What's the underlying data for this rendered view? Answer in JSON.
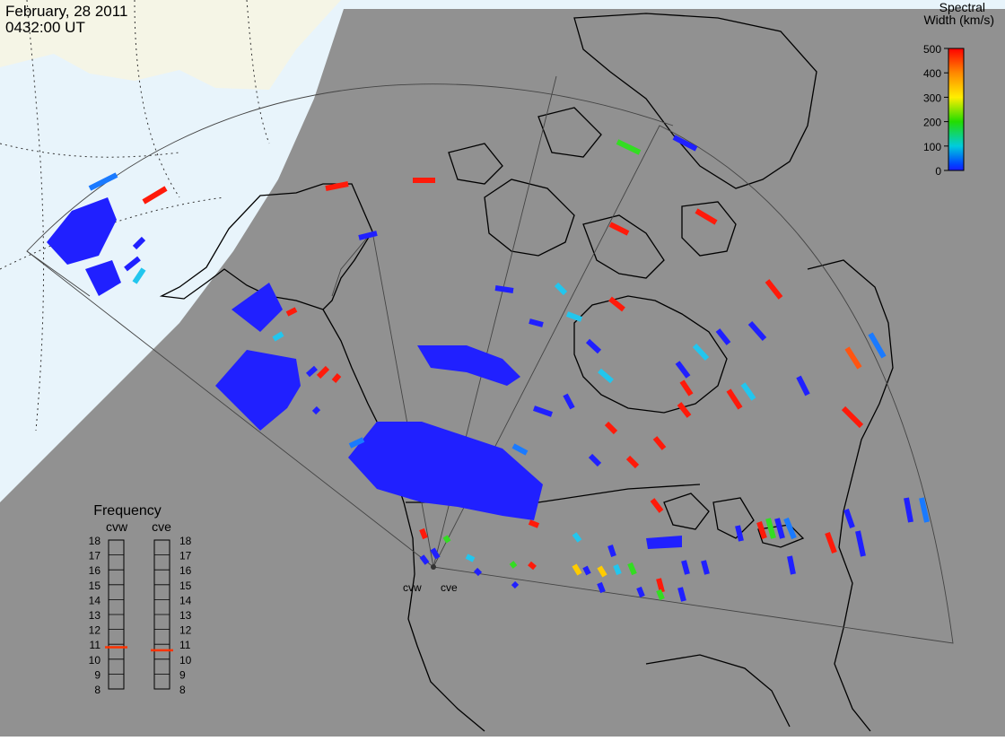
{
  "header": {
    "date": "February, 28 2011",
    "time": "0432:00 UT"
  },
  "colorbar": {
    "title_line1": "Spectral",
    "title_line2": "Width (km/s)",
    "ticks": [
      "500",
      "400",
      "300",
      "200",
      "100",
      "0"
    ],
    "colors": [
      "#ff0000",
      "#ff8800",
      "#ffee00",
      "#22dd00",
      "#00ccdd",
      "#0044ff",
      "#1a1aff"
    ]
  },
  "frequency_panel": {
    "title": "Frequency",
    "radars": [
      {
        "name": "cvw",
        "selected": "10.8"
      },
      {
        "name": "cve",
        "selected": "10.6"
      }
    ],
    "scale": [
      "18",
      "17",
      "16",
      "15",
      "14",
      "13",
      "12",
      "11",
      "10",
      "9",
      "8"
    ],
    "indicator_color": "#ff3300"
  },
  "map": {
    "background": "#919191",
    "night_sky": "#e8f4fb",
    "land_day": "#f5f5e6",
    "radar_labels": [
      "cvw",
      "cve"
    ]
  }
}
